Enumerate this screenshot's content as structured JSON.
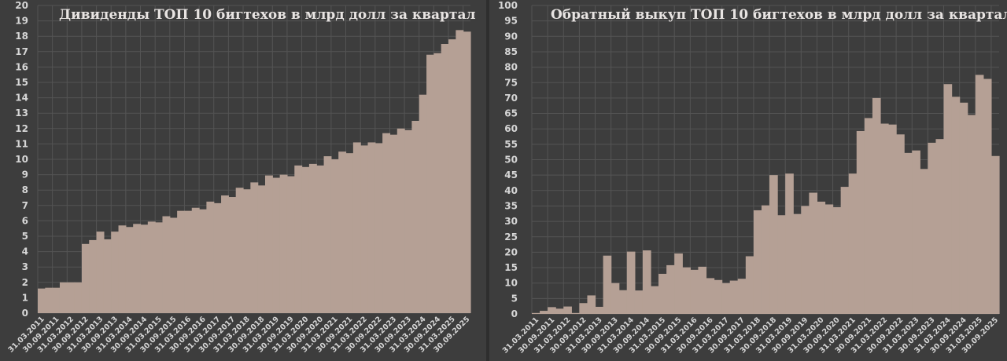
{
  "colors": {
    "background": "#3d3d3d",
    "bar": "#b5a095",
    "grid": "#545454",
    "text": "#d6d6d6"
  },
  "chart_data": [
    {
      "type": "bar",
      "title": "Дивиденды ТОП 10 бигтехов в млрд долл за квартал",
      "ylim": [
        0,
        20
      ],
      "ystep": 1,
      "grid": true,
      "tick_labels": [
        "31.03.2011",
        "30.09.2011",
        "31.03.2012",
        "30.09.2012",
        "31.03.2013",
        "30.09.2013",
        "31.03.2014",
        "30.09.2014",
        "31.03.2015",
        "30.09.2015",
        "31.03.2016",
        "30.09.2016",
        "31.03.2017",
        "30.09.2017",
        "31.03.2018",
        "30.09.2018",
        "31.03.2019",
        "30.09.2019",
        "31.03.2020",
        "30.09.2020",
        "31.03.2021",
        "30.09.2021",
        "31.03.2022",
        "30.09.2022",
        "31.03.2023",
        "30.09.2023",
        "31.03.2024",
        "30.09.2024",
        "31.03.2025",
        "30.09.2025"
      ],
      "values": [
        1.6,
        1.65,
        1.65,
        2.0,
        2.0,
        2.0,
        4.5,
        4.75,
        5.3,
        4.8,
        5.3,
        5.7,
        5.6,
        5.8,
        5.75,
        5.95,
        5.9,
        6.3,
        6.2,
        6.65,
        6.65,
        6.85,
        6.75,
        7.25,
        7.15,
        7.65,
        7.55,
        8.15,
        8.05,
        8.5,
        8.3,
        8.95,
        8.8,
        9.0,
        8.9,
        9.6,
        9.5,
        9.7,
        9.6,
        10.2,
        10.0,
        10.5,
        10.4,
        11.1,
        10.9,
        11.1,
        11.05,
        11.7,
        11.6,
        12.0,
        11.9,
        12.5,
        14.2,
        16.8,
        16.9,
        17.5,
        17.8,
        18.4,
        18.3
      ]
    },
    {
      "type": "bar",
      "title": "Обратный выкуп ТОП 10 бигтехов в млрд долл за квартал",
      "ylim": [
        0,
        100
      ],
      "ystep": 5,
      "grid": true,
      "tick_labels": [
        "31.03.2011",
        "30.09.2011",
        "31.03.2012",
        "30.09.2012",
        "31.03.2013",
        "30.09.2013",
        "31.03.2014",
        "30.09.2014",
        "31.03.2015",
        "30.09.2015",
        "31.03.2016",
        "30.09.2016",
        "31.03.2017",
        "30.09.2017",
        "31.03.2018",
        "30.09.2018",
        "31.03.2019",
        "30.09.2019",
        "31.03.2020",
        "30.09.2020",
        "31.03.2021",
        "30.09.2021",
        "31.03.2022",
        "30.09.2022",
        "31.03.2023",
        "30.09.2023",
        "31.03.2024",
        "30.09.2024",
        "31.03.2025",
        "30.09.2025"
      ],
      "values": [
        0.3,
        1.0,
        2.2,
        1.7,
        2.4,
        0.3,
        3.5,
        6.0,
        2.3,
        18.9,
        10.0,
        7.7,
        20.2,
        7.6,
        20.6,
        9.0,
        13.0,
        15.8,
        19.6,
        15.1,
        14.3,
        15.3,
        11.6,
        11.0,
        10.0,
        10.8,
        11.4,
        18.7,
        33.6,
        35.2,
        45.0,
        32.0,
        45.5,
        32.4,
        35.0,
        39.3,
        36.4,
        35.5,
        34.6,
        41.2,
        45.5,
        59.3,
        63.5,
        70.0,
        61.7,
        61.4,
        58.2,
        52.2,
        53.0,
        47.0,
        55.5,
        56.7,
        74.5,
        70.4,
        68.5,
        64.5,
        77.5,
        76.2,
        51.2
      ]
    }
  ]
}
